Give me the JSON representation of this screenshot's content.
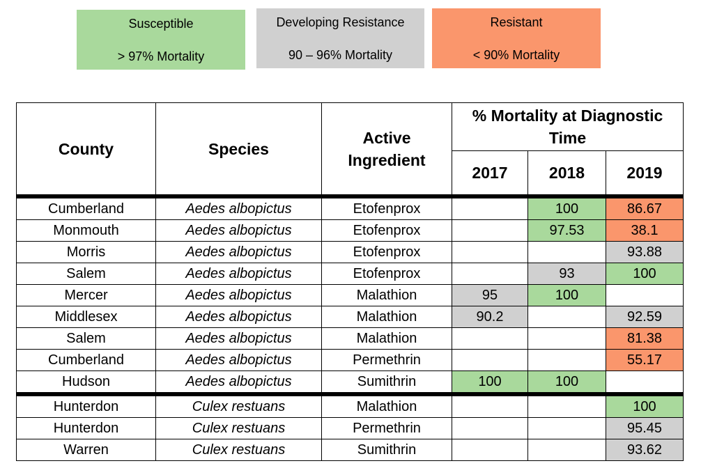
{
  "legend": [
    {
      "label": "Susceptible",
      "range": "> 97% Mortality",
      "color": "#a9d99c"
    },
    {
      "label": "Developing Resistance",
      "range": "90 – 96% Mortality",
      "color": "#d0d0d0"
    },
    {
      "label": "Resistant",
      "range": "< 90% Mortality",
      "color": "#fa966c"
    }
  ],
  "headers": {
    "county": "County",
    "species": "Species",
    "active": "Active Ingredient",
    "mortality": "% Mortality at Diagnostic Time",
    "years": [
      "2017",
      "2018",
      "2019"
    ]
  },
  "rows": [
    {
      "county": "Cumberland",
      "species": "Aedes albopictus",
      "active": "Etofenprox",
      "v": [
        "",
        "100",
        "86.67"
      ],
      "c": [
        "",
        "g",
        "r"
      ]
    },
    {
      "county": "Monmouth",
      "species": "Aedes albopictus",
      "active": "Etofenprox",
      "v": [
        "",
        "97.53",
        "38.1"
      ],
      "c": [
        "",
        "g",
        "r"
      ]
    },
    {
      "county": "Morris",
      "species": "Aedes albopictus",
      "active": "Etofenprox",
      "v": [
        "",
        "",
        "93.88"
      ],
      "c": [
        "",
        "",
        "y"
      ]
    },
    {
      "county": "Salem",
      "species": "Aedes albopictus",
      "active": "Etofenprox",
      "v": [
        "",
        "93",
        "100"
      ],
      "c": [
        "",
        "y",
        "g"
      ]
    },
    {
      "county": "Mercer",
      "species": "Aedes albopictus",
      "active": "Malathion",
      "v": [
        "95",
        "100",
        ""
      ],
      "c": [
        "y",
        "g",
        ""
      ]
    },
    {
      "county": "Middlesex",
      "species": "Aedes albopictus",
      "active": "Malathion",
      "v": [
        "90.2",
        "",
        "92.59"
      ],
      "c": [
        "y",
        "",
        "y"
      ]
    },
    {
      "county": "Salem",
      "species": "Aedes albopictus",
      "active": "Malathion",
      "v": [
        "",
        "",
        "81.38"
      ],
      "c": [
        "",
        "",
        "r"
      ]
    },
    {
      "county": "Cumberland",
      "species": "Aedes albopictus",
      "active": "Permethrin",
      "v": [
        "",
        "",
        "55.17"
      ],
      "c": [
        "",
        "",
        "r"
      ]
    },
    {
      "county": "Hudson",
      "species": "Aedes albopictus",
      "active": "Sumithrin",
      "v": [
        "100",
        "100",
        ""
      ],
      "c": [
        "g",
        "g",
        ""
      ]
    },
    {
      "county": "Hunterdon",
      "species": "Culex restuans",
      "active": "Malathion",
      "v": [
        "",
        "",
        "100"
      ],
      "c": [
        "",
        "",
        "g"
      ],
      "sep": true
    },
    {
      "county": "Hunterdon",
      "species": "Culex restuans",
      "active": "Permethrin",
      "v": [
        "",
        "",
        "95.45"
      ],
      "c": [
        "",
        "",
        "y"
      ]
    },
    {
      "county": "Warren",
      "species": "Culex restuans",
      "active": "Sumithrin",
      "v": [
        "",
        "",
        "93.62"
      ],
      "c": [
        "",
        "",
        "y"
      ]
    }
  ]
}
